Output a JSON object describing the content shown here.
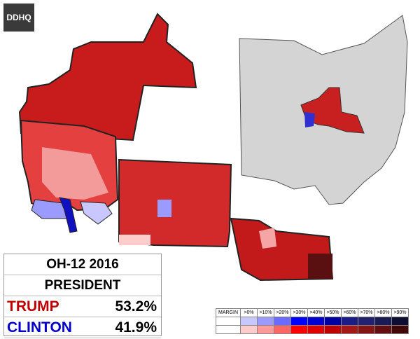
{
  "logo": "DDHQ",
  "results": {
    "title": "OH-12 2016",
    "office": "PRESIDENT",
    "candidates": [
      {
        "name": "TRUMP",
        "pct": "53.2%",
        "color": "#c00000"
      },
      {
        "name": "CLINTON",
        "pct": "41.9%",
        "color": "#0000cc"
      }
    ]
  },
  "legend": {
    "title": "MARGIN",
    "labels": [
      ">0%",
      ">10%",
      ">20%",
      ">30%",
      ">40%",
      ">50%",
      ">60%",
      ">70%",
      ">80%",
      ">90%"
    ],
    "blue": [
      "#c8c8ff",
      "#9a9aff",
      "#6b6bff",
      "#0000ff",
      "#0000d0",
      "#0000a0",
      "#1c1c86",
      "#22226e",
      "#1a1a55",
      "#0e0e33"
    ],
    "red": [
      "#ffcccc",
      "#ff9a9a",
      "#ff6666",
      "#ff0000",
      "#e00000",
      "#c00000",
      "#a51818",
      "#851414",
      "#640f0f",
      "#420808"
    ]
  }
}
